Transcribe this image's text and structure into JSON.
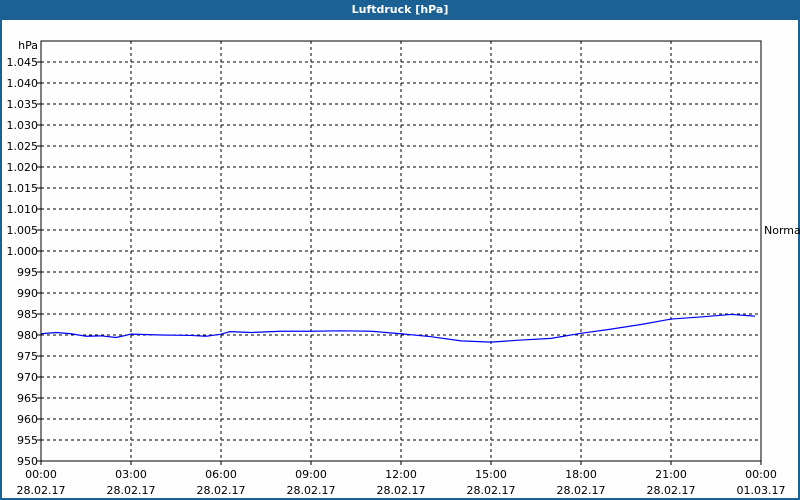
{
  "window": {
    "title": "Luftdruck [hPa]"
  },
  "chart_data": {
    "type": "line",
    "title": "Luftdruck [hPa]",
    "ylabel": "hPa",
    "ylim": [
      950,
      1050
    ],
    "yticks": [
      950,
      955,
      960,
      965,
      970,
      975,
      980,
      985,
      990,
      995,
      1000,
      1005,
      1010,
      1015,
      1020,
      1025,
      1030,
      1035,
      1040,
      1045
    ],
    "ytick_labels": [
      "950",
      "955",
      "960",
      "965",
      "970",
      "975",
      "980",
      "985",
      "990",
      "995",
      "1.000",
      "1.005",
      "1.010",
      "1.015",
      "1.020",
      "1.025",
      "1.030",
      "1.035",
      "1.040",
      "1.045"
    ],
    "xlim_hours": [
      0,
      24
    ],
    "xticks": [
      {
        "time": "00:00",
        "date": "28.02.17"
      },
      {
        "time": "03:00",
        "date": "28.02.17"
      },
      {
        "time": "06:00",
        "date": "28.02.17"
      },
      {
        "time": "09:00",
        "date": "28.02.17"
      },
      {
        "time": "12:00",
        "date": "28.02.17"
      },
      {
        "time": "15:00",
        "date": "28.02.17"
      },
      {
        "time": "18:00",
        "date": "28.02.17"
      },
      {
        "time": "21:00",
        "date": "28.02.17"
      },
      {
        "time": "00:00",
        "date": "01.03.17"
      }
    ],
    "grid": true,
    "legend": {
      "label": "Normal",
      "placement": "right"
    },
    "series": [
      {
        "name": "Normal",
        "color": "#0000ff",
        "x": [
          0,
          0.5,
          1,
          1.5,
          2,
          2.5,
          3,
          4,
          5,
          5.5,
          6,
          6.3,
          7,
          8,
          9,
          10,
          11,
          11.5,
          12,
          13,
          14,
          15,
          16,
          17,
          18,
          19,
          20,
          21,
          22,
          23,
          23.8
        ],
        "y": [
          980.3,
          980.6,
          980.3,
          979.7,
          979.8,
          979.4,
          980.2,
          980,
          979.9,
          979.7,
          980.2,
          980.8,
          980.6,
          980.9,
          980.9,
          981,
          980.9,
          980.6,
          980.3,
          979.6,
          978.6,
          978.3,
          978.8,
          979.2,
          980.4,
          981.4,
          982.5,
          983.8,
          984.3,
          984.9,
          984.5
        ]
      }
    ]
  }
}
